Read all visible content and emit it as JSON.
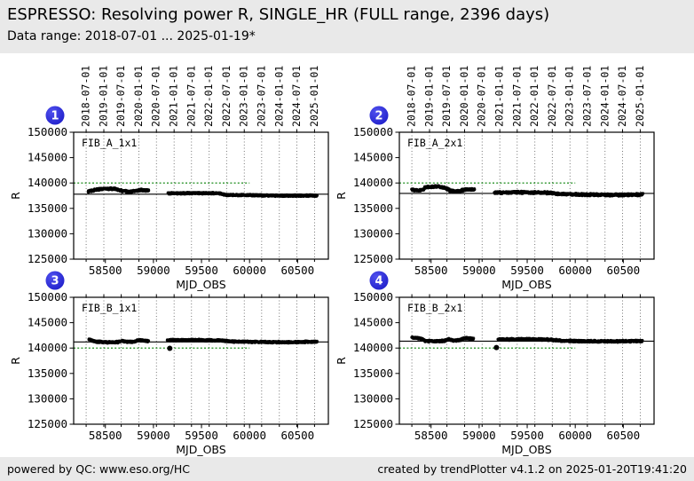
{
  "header": {
    "title": "ESPRESSO: Resolving power R, SINGLE_HR (FULL range, 2396 days)",
    "subtitle": "Data range: 2018-07-01 ... 2025-01-19*"
  },
  "footer": {
    "left": "powered by QC: www.eso.org/HC",
    "right": "created by trendPlotter v4.1.2 on 2025-01-20T19:41:20"
  },
  "colors": {
    "badge_blue": "#2222cc",
    "ref_green": "#007f00",
    "grid_gray": "#555555",
    "data_black": "#000000",
    "band_bg": "#e9e9e9"
  },
  "chart_data": {
    "type": "scatter",
    "xlabel": "MJD_OBS",
    "ylabel": "R",
    "xlim": [
      58170,
      60820
    ],
    "ylim": [
      125000,
      150000
    ],
    "xticks": [
      58500,
      59000,
      59500,
      60000,
      60500
    ],
    "yticks": [
      125000,
      130000,
      135000,
      140000,
      145000,
      150000
    ],
    "grid": "vertical-dotted-at-dates",
    "legend_position": "none",
    "date_ticks": [
      {
        "label": "2018-07-01",
        "mjd": 58300
      },
      {
        "label": "2019-01-01",
        "mjd": 58484
      },
      {
        "label": "2019-07-01",
        "mjd": 58665
      },
      {
        "label": "2020-01-01",
        "mjd": 58849
      },
      {
        "label": "2020-07-01",
        "mjd": 59031
      },
      {
        "label": "2021-01-01",
        "mjd": 59215
      },
      {
        "label": "2021-07-01",
        "mjd": 59396
      },
      {
        "label": "2022-01-01",
        "mjd": 59580
      },
      {
        "label": "2022-07-01",
        "mjd": 59761
      },
      {
        "label": "2023-01-01",
        "mjd": 59945
      },
      {
        "label": "2023-07-01",
        "mjd": 60126
      },
      {
        "label": "2024-01-01",
        "mjd": 60310
      },
      {
        "label": "2024-07-01",
        "mjd": 60492
      },
      {
        "label": "2025-01-01",
        "mjd": 60676
      }
    ],
    "panels": [
      {
        "badge": "1",
        "label": "FIB_A_1x1",
        "mean_line": 137800,
        "ref_line": {
          "value": 140000,
          "mjd_end": 60000
        },
        "outliers": [],
        "segments": [
          {
            "x": [
              58320,
              58400,
              58480,
              58600,
              58660,
              58740,
              58800,
              58870,
              58950
            ],
            "y": [
              138350,
              138650,
              138900,
              138850,
              138500,
              138250,
              138350,
              138600,
              138500
            ],
            "spread": 240
          },
          {
            "x": [
              59155,
              59400,
              59690,
              59760,
              60000,
              60350,
              60700
            ],
            "y": [
              137950,
              138000,
              137970,
              137650,
              137600,
              137500,
              137530
            ],
            "spread": 190
          }
        ]
      },
      {
        "badge": "2",
        "label": "FIB_A_2x1",
        "mean_line": 137950,
        "ref_line": {
          "value": 140000,
          "mjd_end": 60000
        },
        "outliers": [],
        "segments": [
          {
            "x": [
              58300,
              58400,
              58450,
              58560,
              58650,
              58700,
              58800,
              58860,
              58950
            ],
            "y": [
              138650,
              138550,
              139200,
              139300,
              139050,
              138450,
              138400,
              138750,
              138700
            ],
            "spread": 240
          },
          {
            "x": [
              59160,
              59400,
              59700,
              59850,
              60100,
              60400,
              60700
            ],
            "y": [
              138100,
              138150,
              138100,
              137800,
              137700,
              137650,
              137720
            ],
            "spread": 260
          }
        ]
      },
      {
        "badge": "3",
        "label": "FIB_B_1x1",
        "mean_line": 141200,
        "ref_line": {
          "value": 140000,
          "mjd_end": 60000
        },
        "outliers": [
          [
            59170,
            139950
          ]
        ],
        "segments": [
          {
            "x": [
              58330,
              58400,
              58500,
              58620,
              58670,
              58720,
              58800,
              58840,
              58920,
              58950
            ],
            "y": [
              141700,
              141250,
              141150,
              141150,
              141400,
              141250,
              141250,
              141550,
              141450,
              141350
            ],
            "spread": 200
          },
          {
            "x": [
              59150,
              59400,
              59700,
              59820,
              60100,
              60400,
              60700
            ],
            "y": [
              141550,
              141600,
              141500,
              141300,
              141200,
              141150,
              141250
            ],
            "spread": 200
          }
        ]
      },
      {
        "badge": "4",
        "label": "FIB_B_2x1",
        "mean_line": 141350,
        "ref_line": {
          "value": 140000,
          "mjd_end": 60000
        },
        "outliers": [
          [
            59180,
            140100
          ]
        ],
        "segments": [
          {
            "x": [
              58300,
              58390,
              58440,
              58540,
              58640,
              58680,
              58730,
              58800,
              58840,
              58940
            ],
            "y": [
              142050,
              141950,
              141400,
              141350,
              141400,
              141750,
              141500,
              141550,
              141950,
              141850
            ],
            "spread": 220
          },
          {
            "x": [
              59200,
              59450,
              59700,
              59850,
              60100,
              60400,
              60700
            ],
            "y": [
              141700,
              141750,
              141700,
              141450,
              141350,
              141300,
              141400
            ],
            "spread": 220
          }
        ]
      }
    ]
  }
}
